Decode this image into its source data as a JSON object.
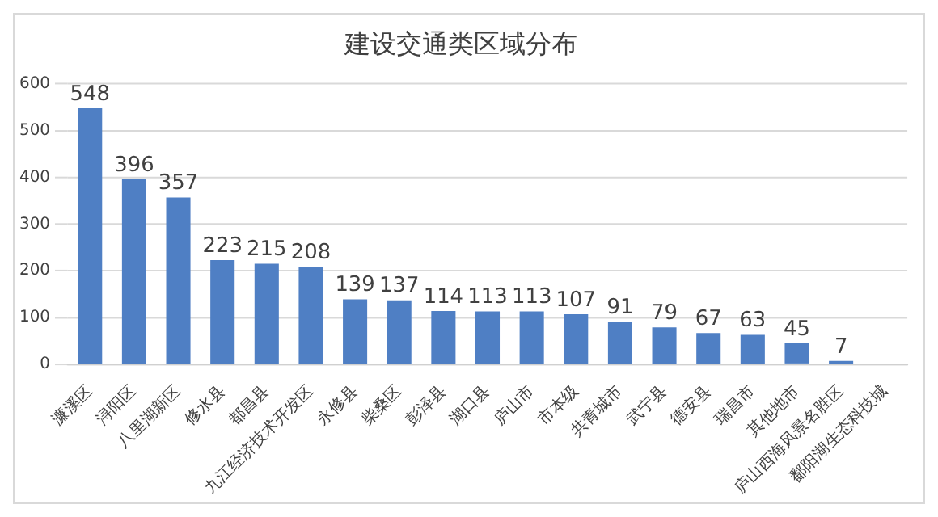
{
  "chart_data": {
    "type": "bar",
    "title": "建设交通类区域分布",
    "categories": [
      "濂溪区",
      "浔阳区",
      "八里湖新区",
      "修水县",
      "都昌县",
      "九江经济技术开发区",
      "永修县",
      "柴桑区",
      "彭泽县",
      "湖口县",
      "庐山市",
      "市本级",
      "共青城市",
      "武宁县",
      "德安县",
      "瑞昌市",
      "其他地市",
      "庐山西海风景名胜区",
      "鄱阳湖生态科技城"
    ],
    "values": [
      548,
      396,
      357,
      223,
      215,
      208,
      139,
      137,
      114,
      113,
      113,
      107,
      91,
      79,
      67,
      63,
      45,
      7,
      null
    ],
    "color": "#4f7fc4",
    "ylim": [
      0,
      600
    ],
    "yticks": [
      0,
      100,
      200,
      300,
      400,
      500,
      600
    ],
    "grid": "y",
    "data_labels": true
  }
}
